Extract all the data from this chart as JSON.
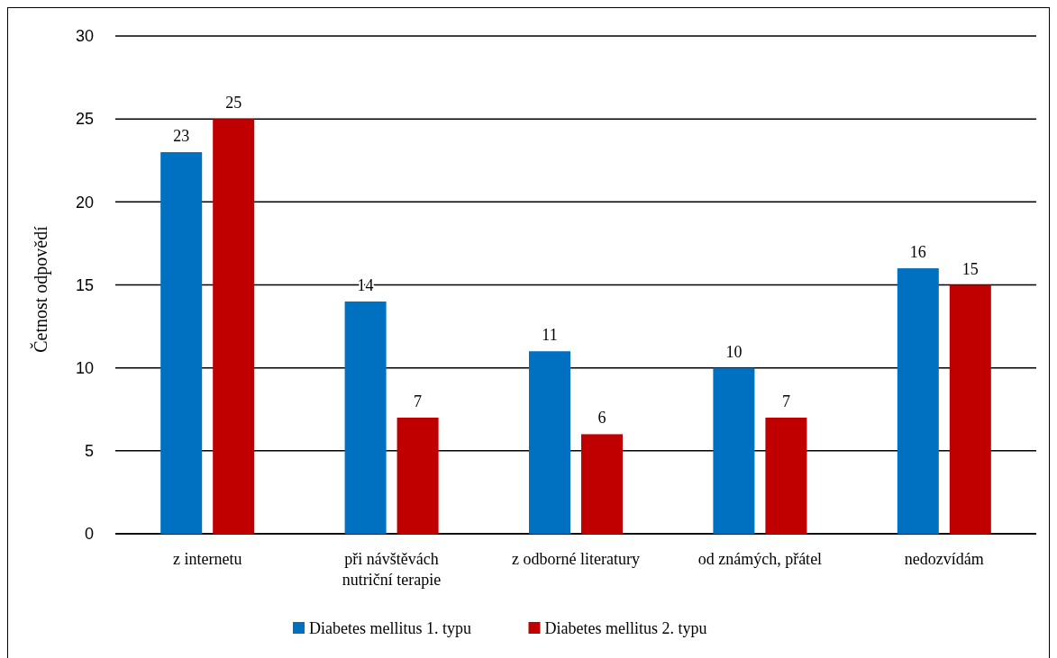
{
  "chart_data": {
    "type": "bar",
    "ylabel": "Četnost odpovědí",
    "categories": [
      "z internetu",
      "při návštěvách nutriční terapie",
      "z odborné literatury",
      "od známých, přátel",
      "nedozvídám"
    ],
    "series": [
      {
        "name": "Diabetes mellitus 1. typu",
        "color": "#0070c0",
        "values": [
          23,
          14,
          11,
          10,
          16
        ]
      },
      {
        "name": "Diabetes mellitus 2. typu",
        "color": "#c00000",
        "values": [
          25,
          7,
          6,
          7,
          15
        ]
      }
    ],
    "ylim": [
      0,
      30
    ],
    "yticks": [
      0,
      5,
      10,
      15,
      20,
      25,
      30
    ],
    "grid": "y",
    "legend": "bottom",
    "data_labels": true
  }
}
